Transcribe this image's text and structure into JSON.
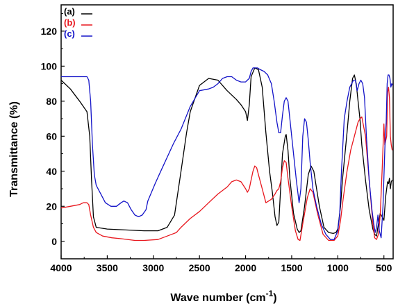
{
  "chart_data": {
    "type": "line",
    "xlabel": "Wave number (cm",
    "xlabel_sup": "-1",
    "xlabel_close": ")",
    "ylabel": "Transmittance (%)",
    "xlim": [
      4000,
      400
    ],
    "ylim": [
      -10,
      135
    ],
    "x_ticks": [
      4000,
      3500,
      3000,
      2500,
      2000,
      1500,
      1000,
      500
    ],
    "y_ticks": [
      0,
      20,
      40,
      60,
      80,
      100,
      120
    ],
    "legend_position": "top-left",
    "series": [
      {
        "name": "(a)",
        "color": "#000000",
        "points": [
          [
            4000,
            92
          ],
          [
            3900,
            87
          ],
          [
            3800,
            80
          ],
          [
            3720,
            74
          ],
          [
            3690,
            60
          ],
          [
            3670,
            35
          ],
          [
            3650,
            14
          ],
          [
            3620,
            8
          ],
          [
            3500,
            7
          ],
          [
            3300,
            6.5
          ],
          [
            3100,
            6
          ],
          [
            2950,
            6
          ],
          [
            2850,
            8
          ],
          [
            2770,
            15
          ],
          [
            2700,
            40
          ],
          [
            2640,
            62
          ],
          [
            2600,
            74
          ],
          [
            2500,
            89
          ],
          [
            2400,
            93
          ],
          [
            2300,
            92
          ],
          [
            2200,
            86
          ],
          [
            2100,
            81
          ],
          [
            2050,
            78
          ],
          [
            2000,
            74
          ],
          [
            1980,
            69
          ],
          [
            1960,
            78
          ],
          [
            1940,
            94
          ],
          [
            1900,
            99
          ],
          [
            1860,
            98
          ],
          [
            1820,
            88
          ],
          [
            1780,
            62
          ],
          [
            1740,
            40
          ],
          [
            1710,
            28
          ],
          [
            1680,
            14
          ],
          [
            1660,
            9
          ],
          [
            1640,
            11
          ],
          [
            1620,
            30
          ],
          [
            1600,
            50
          ],
          [
            1570,
            60
          ],
          [
            1560,
            61
          ],
          [
            1540,
            52
          ],
          [
            1520,
            36
          ],
          [
            1480,
            16
          ],
          [
            1440,
            7
          ],
          [
            1420,
            5
          ],
          [
            1400,
            6
          ],
          [
            1360,
            20
          ],
          [
            1320,
            38
          ],
          [
            1290,
            43
          ],
          [
            1260,
            40
          ],
          [
            1200,
            20
          ],
          [
            1150,
            8
          ],
          [
            1100,
            5
          ],
          [
            1050,
            4.5
          ],
          [
            1020,
            5
          ],
          [
            1000,
            7
          ],
          [
            970,
            20
          ],
          [
            950,
            35
          ],
          [
            900,
            62
          ],
          [
            870,
            80
          ],
          [
            840,
            93
          ],
          [
            820,
            95
          ],
          [
            800,
            90
          ],
          [
            780,
            80
          ],
          [
            760,
            70
          ],
          [
            740,
            55
          ],
          [
            700,
            35
          ],
          [
            660,
            18
          ],
          [
            620,
            7
          ],
          [
            600,
            4
          ],
          [
            580,
            3
          ],
          [
            560,
            10
          ],
          [
            540,
            16
          ],
          [
            520,
            14
          ],
          [
            500,
            12
          ],
          [
            480,
            26
          ],
          [
            470,
            30
          ],
          [
            460,
            34
          ],
          [
            450,
            33
          ],
          [
            440,
            36
          ],
          [
            430,
            30
          ],
          [
            420,
            34
          ],
          [
            410,
            35
          ]
        ]
      },
      {
        "name": "(b)",
        "color": "#e8161d",
        "points": [
          [
            4000,
            19
          ],
          [
            3900,
            20
          ],
          [
            3800,
            21
          ],
          [
            3760,
            22
          ],
          [
            3720,
            22
          ],
          [
            3700,
            21
          ],
          [
            3680,
            15
          ],
          [
            3650,
            8
          ],
          [
            3620,
            5
          ],
          [
            3550,
            3
          ],
          [
            3450,
            2
          ],
          [
            3350,
            1.5
          ],
          [
            3200,
            0.5
          ],
          [
            3100,
            0.5
          ],
          [
            2950,
            1
          ],
          [
            2850,
            3
          ],
          [
            2800,
            4
          ],
          [
            2750,
            5
          ],
          [
            2700,
            8
          ],
          [
            2600,
            13
          ],
          [
            2500,
            17
          ],
          [
            2400,
            22
          ],
          [
            2300,
            27
          ],
          [
            2200,
            31
          ],
          [
            2150,
            34
          ],
          [
            2100,
            35
          ],
          [
            2050,
            34
          ],
          [
            2000,
            30
          ],
          [
            1980,
            28
          ],
          [
            1960,
            30
          ],
          [
            1940,
            35
          ],
          [
            1920,
            40
          ],
          [
            1900,
            43
          ],
          [
            1880,
            42
          ],
          [
            1860,
            38
          ],
          [
            1820,
            30
          ],
          [
            1780,
            22
          ],
          [
            1720,
            24
          ],
          [
            1680,
            27
          ],
          [
            1660,
            29
          ],
          [
            1640,
            30
          ],
          [
            1620,
            34
          ],
          [
            1600,
            42
          ],
          [
            1580,
            46
          ],
          [
            1560,
            45
          ],
          [
            1540,
            36
          ],
          [
            1500,
            20
          ],
          [
            1460,
            6
          ],
          [
            1430,
            1
          ],
          [
            1410,
            0.5
          ],
          [
            1380,
            10
          ],
          [
            1330,
            25
          ],
          [
            1300,
            30
          ],
          [
            1270,
            28
          ],
          [
            1220,
            16
          ],
          [
            1160,
            4
          ],
          [
            1100,
            0.5
          ],
          [
            1040,
            0.5
          ],
          [
            1000,
            3
          ],
          [
            970,
            12
          ],
          [
            940,
            25
          ],
          [
            900,
            40
          ],
          [
            860,
            52
          ],
          [
            820,
            60
          ],
          [
            780,
            68
          ],
          [
            760,
            70
          ],
          [
            740,
            71
          ],
          [
            700,
            60
          ],
          [
            660,
            35
          ],
          [
            620,
            10
          ],
          [
            600,
            2
          ],
          [
            580,
            1
          ],
          [
            560,
            4
          ],
          [
            540,
            15
          ],
          [
            520,
            40
          ],
          [
            500,
            67
          ],
          [
            490,
            55
          ],
          [
            470,
            60
          ],
          [
            460,
            85
          ],
          [
            450,
            88
          ],
          [
            440,
            82
          ],
          [
            430,
            60
          ],
          [
            420,
            55
          ],
          [
            410,
            52
          ]
        ]
      },
      {
        "name": "(c)",
        "color": "#1313c8",
        "points": [
          [
            4000,
            94
          ],
          [
            3900,
            94
          ],
          [
            3800,
            94
          ],
          [
            3720,
            94
          ],
          [
            3700,
            92
          ],
          [
            3680,
            80
          ],
          [
            3660,
            55
          ],
          [
            3640,
            38
          ],
          [
            3620,
            32
          ],
          [
            3580,
            28
          ],
          [
            3520,
            22
          ],
          [
            3460,
            20
          ],
          [
            3400,
            20
          ],
          [
            3350,
            22
          ],
          [
            3320,
            23
          ],
          [
            3280,
            22
          ],
          [
            3240,
            18
          ],
          [
            3200,
            15
          ],
          [
            3160,
            14
          ],
          [
            3120,
            15
          ],
          [
            3080,
            18
          ],
          [
            3060,
            23
          ],
          [
            3020,
            28
          ],
          [
            2980,
            33
          ],
          [
            2920,
            40
          ],
          [
            2850,
            48
          ],
          [
            2780,
            56
          ],
          [
            2700,
            64
          ],
          [
            2600,
            77
          ],
          [
            2500,
            86
          ],
          [
            2400,
            87
          ],
          [
            2350,
            88
          ],
          [
            2300,
            90
          ],
          [
            2250,
            93
          ],
          [
            2200,
            94
          ],
          [
            2150,
            94
          ],
          [
            2100,
            92
          ],
          [
            2050,
            91
          ],
          [
            2000,
            91
          ],
          [
            1980,
            92
          ],
          [
            1960,
            93
          ],
          [
            1940,
            97
          ],
          [
            1920,
            99
          ],
          [
            1900,
            99
          ],
          [
            1870,
            99
          ],
          [
            1840,
            98
          ],
          [
            1800,
            97
          ],
          [
            1760,
            95
          ],
          [
            1720,
            90
          ],
          [
            1690,
            80
          ],
          [
            1660,
            68
          ],
          [
            1640,
            62
          ],
          [
            1620,
            62
          ],
          [
            1600,
            72
          ],
          [
            1580,
            80
          ],
          [
            1560,
            82
          ],
          [
            1540,
            80
          ],
          [
            1520,
            70
          ],
          [
            1480,
            50
          ],
          [
            1450,
            35
          ],
          [
            1420,
            22
          ],
          [
            1400,
            30
          ],
          [
            1380,
            60
          ],
          [
            1360,
            70
          ],
          [
            1340,
            68
          ],
          [
            1320,
            58
          ],
          [
            1300,
            45
          ],
          [
            1270,
            30
          ],
          [
            1230,
            20
          ],
          [
            1180,
            10
          ],
          [
            1130,
            4
          ],
          [
            1080,
            1
          ],
          [
            1040,
            1
          ],
          [
            1000,
            6
          ],
          [
            980,
            15
          ],
          [
            960,
            40
          ],
          [
            930,
            70
          ],
          [
            900,
            80
          ],
          [
            870,
            88
          ],
          [
            850,
            90
          ],
          [
            830,
            92
          ],
          [
            810,
            92
          ],
          [
            790,
            86
          ],
          [
            770,
            90
          ],
          [
            750,
            92
          ],
          [
            730,
            90
          ],
          [
            710,
            82
          ],
          [
            690,
            60
          ],
          [
            660,
            35
          ],
          [
            630,
            18
          ],
          [
            610,
            10
          ],
          [
            595,
            5
          ],
          [
            580,
            8
          ],
          [
            565,
            15
          ],
          [
            550,
            6
          ],
          [
            530,
            2
          ],
          [
            510,
            20
          ],
          [
            495,
            45
          ],
          [
            485,
            60
          ],
          [
            475,
            68
          ],
          [
            465,
            90
          ],
          [
            455,
            95
          ],
          [
            445,
            95
          ],
          [
            435,
            93
          ],
          [
            425,
            88
          ],
          [
            415,
            90
          ],
          [
            405,
            89
          ]
        ]
      }
    ]
  }
}
